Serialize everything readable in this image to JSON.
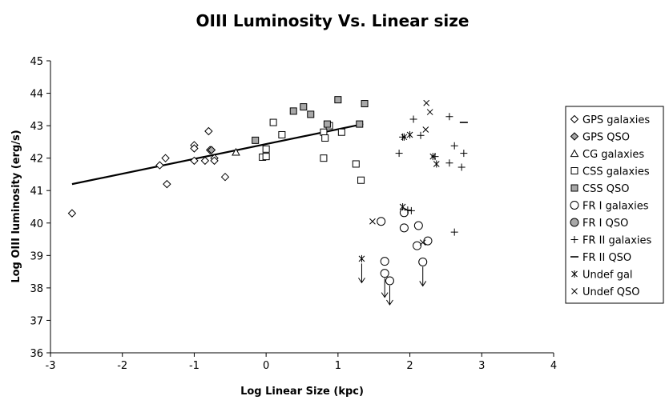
{
  "chart_data": {
    "type": "scatter",
    "title": "OIII Luminosity Vs. Linear size",
    "xlabel": "Log Linear Size (kpc)",
    "ylabel": "Log OIII luminosity (erg/s)",
    "xlim": [
      -3,
      4
    ],
    "ylim": [
      36,
      45
    ],
    "x_ticks": [
      -3,
      -2,
      -1,
      0,
      1,
      2,
      3,
      4
    ],
    "y_ticks": [
      36,
      37,
      38,
      39,
      40,
      41,
      42,
      43,
      44,
      45
    ],
    "grid": false,
    "legend_position": "right",
    "fit_line": {
      "x": [
        -2.7,
        1.35
      ],
      "y": [
        41.2,
        43.05
      ]
    },
    "series": [
      {
        "name": "GPS galaxies",
        "marker": "diamond-open",
        "points": [
          [
            -2.7,
            40.3
          ],
          [
            -1.48,
            41.78
          ],
          [
            -1.4,
            42.0
          ],
          [
            -1.38,
            41.2
          ],
          [
            -1.0,
            42.4
          ],
          [
            -1.0,
            42.3
          ],
          [
            -1.0,
            41.92
          ],
          [
            -0.85,
            41.92
          ],
          [
            -0.8,
            42.83
          ],
          [
            -0.78,
            42.25
          ],
          [
            -0.72,
            42.0
          ],
          [
            -0.72,
            41.92
          ],
          [
            -0.57,
            41.42
          ]
        ]
      },
      {
        "name": "GPS QSO",
        "marker": "diamond-filled",
        "points": [
          [
            -0.76,
            42.25
          ]
        ]
      },
      {
        "name": "CG galaxies",
        "marker": "triangle-open",
        "points": [
          [
            -0.42,
            42.18
          ]
        ]
      },
      {
        "name": "CSS galaxies",
        "marker": "square-open",
        "points": [
          [
            -0.05,
            42.03
          ],
          [
            0.0,
            42.28
          ],
          [
            0.0,
            42.05
          ],
          [
            0.1,
            43.1
          ],
          [
            0.22,
            42.72
          ],
          [
            0.8,
            42.0
          ],
          [
            0.8,
            42.8
          ],
          [
            0.82,
            42.62
          ],
          [
            0.88,
            43.0
          ],
          [
            1.05,
            42.8
          ],
          [
            1.25,
            41.82
          ],
          [
            1.32,
            41.32
          ]
        ]
      },
      {
        "name": "CSS QSO",
        "marker": "square-filled",
        "points": [
          [
            -0.15,
            42.55
          ],
          [
            0.38,
            43.45
          ],
          [
            0.52,
            43.58
          ],
          [
            0.62,
            43.35
          ],
          [
            0.85,
            43.05
          ],
          [
            1.0,
            43.8
          ],
          [
            1.3,
            43.05
          ],
          [
            1.37,
            43.68
          ]
        ]
      },
      {
        "name": "FR I galaxies",
        "marker": "circle-open",
        "points": [
          [
            1.6,
            40.05
          ],
          [
            1.65,
            38.82
          ],
          [
            1.65,
            38.45
          ],
          [
            1.72,
            38.22
          ],
          [
            1.92,
            40.32
          ],
          [
            1.92,
            39.85
          ],
          [
            2.1,
            39.3
          ],
          [
            2.12,
            39.92
          ],
          [
            2.18,
            38.8
          ],
          [
            2.25,
            39.45
          ]
        ]
      },
      {
        "name": "FR I QSO",
        "marker": "circle-filled",
        "points": []
      },
      {
        "name": "FR II galaxies",
        "marker": "plus",
        "points": [
          [
            1.85,
            42.15
          ],
          [
            1.9,
            42.65
          ],
          [
            1.97,
            40.4
          ],
          [
            2.02,
            40.38
          ],
          [
            2.05,
            43.2
          ],
          [
            2.15,
            42.7
          ],
          [
            2.35,
            42.05
          ],
          [
            2.55,
            43.28
          ],
          [
            2.55,
            41.85
          ],
          [
            2.62,
            42.38
          ],
          [
            2.62,
            39.72
          ],
          [
            2.72,
            41.72
          ],
          [
            2.75,
            42.15
          ]
        ]
      },
      {
        "name": "FR II QSO",
        "marker": "dash",
        "points": [
          [
            2.75,
            43.1
          ]
        ]
      },
      {
        "name": "Undef gal",
        "marker": "asterisk",
        "points": [
          [
            1.33,
            38.9
          ],
          [
            1.9,
            40.5
          ],
          [
            1.92,
            42.65
          ],
          [
            2.0,
            42.72
          ],
          [
            2.32,
            42.05
          ],
          [
            2.37,
            41.82
          ]
        ]
      },
      {
        "name": "Undef QSO",
        "marker": "x",
        "points": [
          [
            1.48,
            40.05
          ],
          [
            2.18,
            39.4
          ],
          [
            2.22,
            42.88
          ],
          [
            2.23,
            43.7
          ],
          [
            2.28,
            43.42
          ]
        ]
      }
    ],
    "upper_limits": [
      [
        1.33,
        38.9
      ],
      [
        1.65,
        38.45
      ],
      [
        1.72,
        38.22
      ],
      [
        2.18,
        38.8
      ]
    ]
  }
}
